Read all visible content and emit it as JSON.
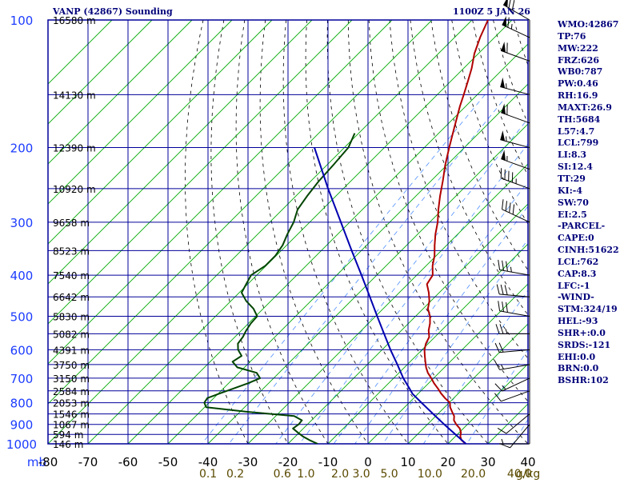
{
  "header": {
    "station": "VANP (42867) Sounding",
    "time": "1100Z  5 JAN 26"
  },
  "colors": {
    "frame": "#00009a",
    "grid": "#00009a",
    "isotherm": "#00aa00",
    "dry_adiabat": "#000000",
    "mixing_ratio": "#4f8fff",
    "temperature": "#b00000",
    "dewpoint": "#004400",
    "parcel": "#0000b0",
    "axis_text_blue": "#1c3cff",
    "axis_text_black": "#000000",
    "mixing_text": "#5a4a00",
    "index_text": "#00007a"
  },
  "indices": [
    "WMO:42867",
    "TP:76",
    "MW:222",
    "FRZ:626",
    "WB0:787",
    "PW:0.46",
    "RH:16.9",
    "MAXT:26.9",
    "TH:5684",
    "L57:4.7",
    "LCL:799",
    "LI:8.3",
    "SI:12.4",
    "TT:29",
    "KI:-4",
    "SW:70",
    "EI:2.5",
    "-PARCEL-",
    "CAPE:0",
    "CINH:51622",
    "LCL:762",
    "CAP:8.3",
    "LFC:-1",
    "-WIND-",
    "STM:324/19",
    "HEL:-93",
    "SHR+:0.0",
    "SRDS:-121",
    "EHI:0.0",
    "BRN:0.0",
    "BSHR:102"
  ],
  "chart_data": {
    "type": "skew-t log-p sounding",
    "y_axis": {
      "label": "mb",
      "scale": "log",
      "ylim": [
        1000,
        100
      ],
      "ticks": [
        100,
        200,
        300,
        400,
        500,
        600,
        700,
        800,
        900,
        1000
      ]
    },
    "x_axis": {
      "unit": "°C",
      "xlim": [
        -80,
        40
      ],
      "ticks": [
        -80,
        -70,
        -60,
        -50,
        -40,
        -30,
        -20,
        -10,
        0,
        10,
        20,
        30,
        40
      ]
    },
    "x_tick_labels": [
      "-80",
      "-70",
      "-60",
      "-50",
      "-40",
      "-30",
      "-20",
      "-10",
      "0",
      "10",
      "20",
      "30",
      "40"
    ],
    "mixing_ratio_labels": [
      "0.1",
      "0.2",
      "0.6",
      "1.0",
      "2.0",
      "3.0",
      "5.0",
      "10.0",
      "20.0",
      "40.0"
    ],
    "mixing_ratio_unit": "g/kg",
    "height_labels": [
      {
        "p": 100,
        "label": "16580 m"
      },
      {
        "p": 150,
        "label": "14130 m"
      },
      {
        "p": 200,
        "label": "12390 m"
      },
      {
        "p": 250,
        "label": "10920 m"
      },
      {
        "p": 300,
        "label": "9658 m"
      },
      {
        "p": 350,
        "label": "8523 m"
      },
      {
        "p": 400,
        "label": "7540 m"
      },
      {
        "p": 450,
        "label": "6642 m"
      },
      {
        "p": 500,
        "label": "5830 m"
      },
      {
        "p": 550,
        "label": "5082 m"
      },
      {
        "p": 600,
        "label": "4391 m"
      },
      {
        "p": 650,
        "label": "3750 m"
      },
      {
        "p": 700,
        "label": "3150 m"
      },
      {
        "p": 750,
        "label": "2584 m"
      },
      {
        "p": 800,
        "label": "2053 m"
      },
      {
        "p": 850,
        "label": "1546 m"
      },
      {
        "p": 900,
        "label": "1067 m"
      },
      {
        "p": 950,
        "label": "594 m"
      },
      {
        "p": 1000,
        "label": "146 m"
      }
    ],
    "series": [
      {
        "name": "temperature",
        "points": [
          [
            1000,
            24.4
          ],
          [
            980,
            22.4
          ],
          [
            960,
            21.2
          ],
          [
            940,
            20.4
          ],
          [
            920,
            19.1
          ],
          [
            900,
            17.2
          ],
          [
            880,
            15.6
          ],
          [
            860,
            14.6
          ],
          [
            840,
            13.0
          ],
          [
            820,
            11.4
          ],
          [
            800,
            10.2
          ],
          [
            780,
            7.8
          ],
          [
            760,
            5.6
          ],
          [
            740,
            3.6
          ],
          [
            720,
            1.4
          ],
          [
            700,
            -0.6
          ],
          [
            680,
            -2.8
          ],
          [
            660,
            -4.6
          ],
          [
            640,
            -6.2
          ],
          [
            620,
            -7.8
          ],
          [
            600,
            -9.4
          ],
          [
            580,
            -10.6
          ],
          [
            560,
            -11.4
          ],
          [
            540,
            -13.2
          ],
          [
            520,
            -14.6
          ],
          [
            500,
            -16.4
          ],
          [
            480,
            -18.8
          ],
          [
            460,
            -20.4
          ],
          [
            440,
            -22.6
          ],
          [
            420,
            -25.2
          ],
          [
            400,
            -26.0
          ],
          [
            380,
            -28.4
          ],
          [
            360,
            -30.4
          ],
          [
            340,
            -33.0
          ],
          [
            320,
            -35.6
          ],
          [
            300,
            -38.0
          ],
          [
            280,
            -41.0
          ],
          [
            260,
            -44.0
          ],
          [
            240,
            -47.0
          ],
          [
            220,
            -50.4
          ],
          [
            200,
            -53.8
          ],
          [
            180,
            -57.4
          ],
          [
            160,
            -61.4
          ],
          [
            150,
            -63.4
          ],
          [
            140,
            -65.6
          ],
          [
            130,
            -68.0
          ],
          [
            120,
            -71.0
          ],
          [
            110,
            -73.6
          ],
          [
            100,
            -76.0
          ]
        ]
      },
      {
        "name": "dewpoint",
        "points": [
          [
            1000,
            -12.6
          ],
          [
            980,
            -15.6
          ],
          [
            960,
            -18.2
          ],
          [
            940,
            -20.4
          ],
          [
            920,
            -22.6
          ],
          [
            900,
            -22.2
          ],
          [
            880,
            -22.4
          ],
          [
            860,
            -25.4
          ],
          [
            840,
            -38.4
          ],
          [
            820,
            -49.6
          ],
          [
            800,
            -51.2
          ],
          [
            780,
            -51.6
          ],
          [
            760,
            -49.6
          ],
          [
            740,
            -47.4
          ],
          [
            720,
            -45.2
          ],
          [
            700,
            -43.4
          ],
          [
            680,
            -45.6
          ],
          [
            660,
            -51.8
          ],
          [
            640,
            -54.4
          ],
          [
            620,
            -53.6
          ],
          [
            600,
            -56.0
          ],
          [
            580,
            -57.6
          ],
          [
            560,
            -58.0
          ],
          [
            540,
            -58.8
          ],
          [
            520,
            -59.4
          ],
          [
            500,
            -59.6
          ],
          [
            480,
            -62.4
          ],
          [
            460,
            -66.2
          ],
          [
            440,
            -69.4
          ],
          [
            420,
            -70.4
          ],
          [
            400,
            -71.4
          ],
          [
            380,
            -70.2
          ],
          [
            360,
            -70.2
          ],
          [
            340,
            -71.0
          ],
          [
            320,
            -72.6
          ],
          [
            300,
            -74.0
          ],
          [
            280,
            -76.2
          ],
          [
            260,
            -77.2
          ],
          [
            240,
            -78.0
          ],
          [
            220,
            -78.4
          ],
          [
            200,
            -79.0
          ],
          [
            185,
            -81.0
          ]
        ]
      },
      {
        "name": "parcel",
        "points": [
          [
            1000,
            24.5
          ],
          [
            950,
            19.5
          ],
          [
            900,
            14.2
          ],
          [
            850,
            8.8
          ],
          [
            800,
            3.1
          ],
          [
            762,
            -1.4
          ],
          [
            740,
            -3.5
          ],
          [
            700,
            -7.6
          ],
          [
            650,
            -12.5
          ],
          [
            600,
            -17.9
          ],
          [
            550,
            -23.5
          ],
          [
            500,
            -29.6
          ],
          [
            450,
            -36.3
          ],
          [
            400,
            -43.8
          ],
          [
            350,
            -52.4
          ],
          [
            300,
            -62.2
          ],
          [
            250,
            -73.8
          ],
          [
            200,
            -87.5
          ]
        ]
      }
    ],
    "wind_barbs": [
      {
        "p": 100,
        "dir": 300,
        "spd": 70
      },
      {
        "p": 110,
        "dir": 295,
        "spd": 65
      },
      {
        "p": 125,
        "dir": 290,
        "spd": 60
      },
      {
        "p": 150,
        "dir": 285,
        "spd": 55
      },
      {
        "p": 175,
        "dir": 290,
        "spd": 60
      },
      {
        "p": 200,
        "dir": 285,
        "spd": 55
      },
      {
        "p": 225,
        "dir": 290,
        "spd": 55
      },
      {
        "p": 250,
        "dir": 290,
        "spd": 45
      },
      {
        "p": 300,
        "dir": 295,
        "spd": 40
      },
      {
        "p": 400,
        "dir": 280,
        "spd": 35
      },
      {
        "p": 450,
        "dir": 275,
        "spd": 30
      },
      {
        "p": 500,
        "dir": 280,
        "spd": 30
      },
      {
        "p": 550,
        "dir": 270,
        "spd": 25
      },
      {
        "p": 600,
        "dir": 265,
        "spd": 20
      },
      {
        "p": 650,
        "dir": 260,
        "spd": 15
      },
      {
        "p": 700,
        "dir": 245,
        "spd": 15
      },
      {
        "p": 750,
        "dir": 250,
        "spd": 10
      },
      {
        "p": 850,
        "dir": 230,
        "spd": 10
      },
      {
        "p": 900,
        "dir": 220,
        "spd": 10
      },
      {
        "p": 1000,
        "dir": 270,
        "spd": 5
      }
    ]
  }
}
